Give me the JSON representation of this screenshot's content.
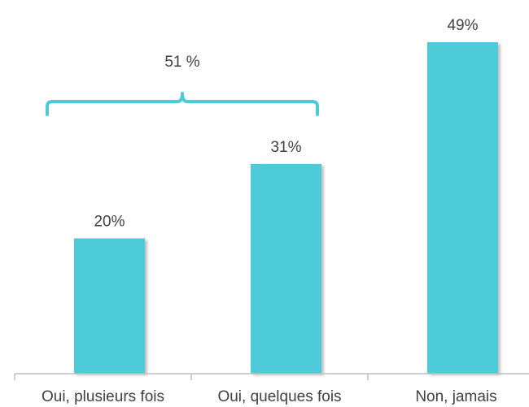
{
  "chart_data": {
    "type": "bar",
    "categories": [
      "Oui, plusieurs fois",
      "Oui, quelques fois",
      "Non, jamais"
    ],
    "values": [
      20,
      31,
      49
    ],
    "value_labels": [
      "20%",
      "31%",
      "49%"
    ],
    "ylim": [
      0,
      50
    ],
    "grid": false,
    "legend": "none",
    "bar_color": "#4ECBD9",
    "shadow_color": "#BFBFBF",
    "axis_color": "#BFBFBF",
    "bracket": {
      "label": "51 %",
      "spans": [
        "Oui, plusieurs fois",
        "Oui, quelques fois"
      ],
      "value": 51,
      "color": "#4ECBD9"
    }
  }
}
